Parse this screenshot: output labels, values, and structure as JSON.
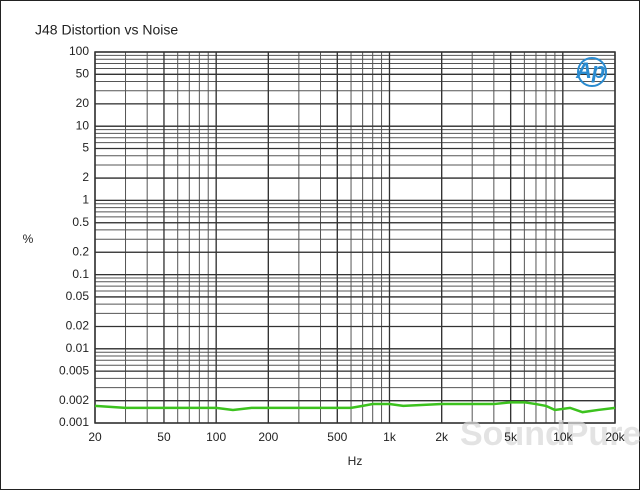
{
  "chart_data": {
    "type": "line",
    "title": "J48 Distortion vs Noise",
    "x_label": "Hz",
    "y_label": "%",
    "logo": "Ap",
    "watermark": "SoundPure",
    "xscale": "log",
    "yscale": "log",
    "grid": true,
    "minor_grid": true,
    "xlim": [
      20,
      20000
    ],
    "xticks": [
      20,
      50,
      100,
      200,
      500,
      {
        "value": 1000,
        "label": "1k"
      },
      {
        "value": 2000,
        "label": "2k"
      },
      {
        "value": 5000,
        "label": "5k"
      },
      {
        "value": 10000,
        "label": "10k"
      },
      {
        "value": 20000,
        "label": "20k"
      }
    ],
    "ylim": [
      0.001,
      100
    ],
    "yticks": [
      0.001,
      0.002,
      0.005,
      0.01,
      0.02,
      0.05,
      0.1,
      0.2,
      0.5,
      1,
      2,
      5,
      10,
      20,
      50,
      100
    ],
    "x": [
      20,
      30,
      50,
      100,
      125,
      160,
      300,
      600,
      700,
      800,
      1000,
      1200,
      2000,
      4000,
      5000,
      6000,
      7000,
      8000,
      9000,
      11000,
      13000,
      16000,
      20000
    ],
    "series": [
      {
        "color": "#3cc21e",
        "values": [
          0.0017,
          0.0016,
          0.0016,
          0.0016,
          0.0015,
          0.0016,
          0.0016,
          0.0016,
          0.0017,
          0.0018,
          0.0018,
          0.0017,
          0.0018,
          0.0018,
          0.0019,
          0.0019,
          0.0018,
          0.0017,
          0.0015,
          0.0016,
          0.0014,
          0.0015,
          0.0016
        ]
      }
    ]
  }
}
